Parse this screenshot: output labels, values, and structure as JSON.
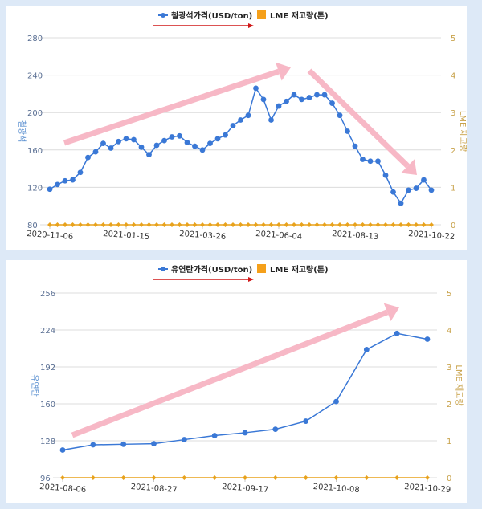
{
  "chart_data": [
    {
      "type": "line",
      "legend": [
        "철광석가격(USD/ton)",
        "LME 재고량(톤)"
      ],
      "legend_position": "top-center",
      "ylabel": "철광석",
      "y2label": "LME 재고량",
      "ylim": [
        80,
        280
      ],
      "yticks": [
        80,
        120,
        160,
        200,
        240,
        280
      ],
      "y2lim": [
        0,
        5
      ],
      "y2ticks": [
        0,
        1,
        2,
        3,
        4,
        5
      ],
      "xtick_labels": [
        "2020-11-06",
        "2021-01-15",
        "2021-03-26",
        "2021-06-04",
        "2021-08-13",
        "2021-10-22"
      ],
      "xtick_index": [
        0,
        10,
        20,
        30,
        40,
        50
      ],
      "grid": true,
      "series": [
        {
          "name": "철광석가격(USD/ton)",
          "axis": "left",
          "color": "#3a78d6",
          "values": [
            118,
            123,
            127,
            128,
            136,
            152,
            158,
            167,
            162,
            169,
            172,
            171,
            163,
            155,
            165,
            170,
            174,
            175,
            168,
            164,
            160,
            167,
            172,
            176,
            186,
            192,
            197,
            226,
            214,
            192,
            207,
            212,
            219,
            214,
            216,
            219,
            219,
            210,
            197,
            180,
            164,
            150,
            148,
            148,
            133,
            115,
            103,
            117,
            119,
            128,
            117
          ]
        },
        {
          "name": "LME 재고량(톤)",
          "axis": "right",
          "color": "#e8a21c",
          "values": [
            0,
            0,
            0,
            0,
            0,
            0,
            0,
            0,
            0,
            0,
            0,
            0,
            0,
            0,
            0,
            0,
            0,
            0,
            0,
            0,
            0,
            0,
            0,
            0,
            0,
            0,
            0,
            0,
            0,
            0,
            0,
            0,
            0,
            0,
            0,
            0,
            0,
            0,
            0,
            0,
            0,
            0,
            0,
            0,
            0,
            0,
            0,
            0,
            0,
            0,
            0
          ]
        }
      ],
      "annotations": [
        "up-arrow",
        "down-arrow"
      ]
    },
    {
      "type": "line",
      "legend": [
        "유연탄가격(USD/ton)",
        "LME 재고량(톤)"
      ],
      "legend_position": "top-center",
      "ylabel": "유연탄",
      "y2label": "LME 재고량",
      "ylim": [
        96,
        256
      ],
      "yticks": [
        96,
        128,
        160,
        192,
        224,
        256
      ],
      "y2lim": [
        0,
        5
      ],
      "y2ticks": [
        0,
        1,
        2,
        3,
        4,
        5
      ],
      "xtick_labels": [
        "2021-08-06",
        "2021-08-27",
        "2021-09-17",
        "2021-10-08",
        "2021-10-29"
      ],
      "xtick_index": [
        0,
        3,
        6,
        9,
        12
      ],
      "grid": true,
      "series": [
        {
          "name": "유연탄가격(USD/ton)",
          "axis": "left",
          "color": "#3a78d6",
          "values": [
            120,
            124.5,
            125,
            125.5,
            129,
            132.5,
            135,
            138,
            145,
            162,
            207,
            221,
            216
          ]
        },
        {
          "name": "LME 재고량(톤)",
          "axis": "right",
          "color": "#e8a21c",
          "values": [
            0,
            0,
            0,
            0,
            0,
            0,
            0,
            0,
            0,
            0,
            0,
            0,
            0
          ]
        }
      ],
      "annotations": [
        "up-arrow"
      ]
    }
  ]
}
